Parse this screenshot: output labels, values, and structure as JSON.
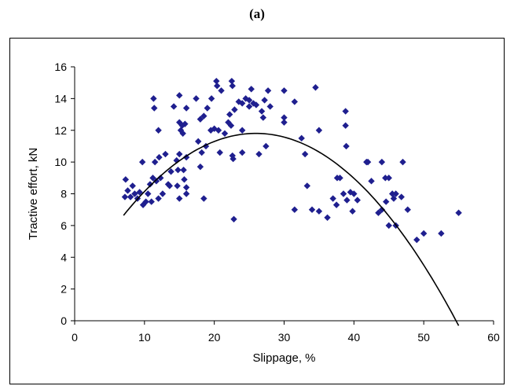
{
  "panel": {
    "label_open": "(",
    "label_letter": "a",
    "label_close": ")"
  },
  "chart_data": {
    "type": "scatter",
    "xlabel": "Slippage, %",
    "ylabel": "Tractive effort, kN",
    "xlim": [
      0,
      60
    ],
    "ylim": [
      0,
      16
    ],
    "xticks": [
      0,
      10,
      20,
      30,
      40,
      50,
      60
    ],
    "yticks": [
      0,
      2,
      4,
      6,
      8,
      10,
      12,
      14,
      16
    ],
    "grid": false,
    "legend": "none",
    "colors": {
      "points": "#1F1F8F",
      "trend": "#000000"
    },
    "series": [
      {
        "values": [
          [
            7.2,
            7.8
          ],
          [
            7.3,
            8.9
          ],
          [
            7.6,
            8.2
          ],
          [
            8.0,
            7.8
          ],
          [
            8.3,
            8.5
          ],
          [
            8.6,
            8.0
          ],
          [
            9.0,
            7.7
          ],
          [
            9.3,
            8.1
          ],
          [
            9.7,
            10.0
          ],
          [
            9.8,
            7.3
          ],
          [
            10.2,
            7.5
          ],
          [
            10.5,
            8.0
          ],
          [
            10.8,
            8.6
          ],
          [
            11.0,
            7.5
          ],
          [
            11.2,
            9.0
          ],
          [
            11.3,
            14.0
          ],
          [
            11.4,
            13.4
          ],
          [
            11.5,
            10.0
          ],
          [
            11.7,
            8.8
          ],
          [
            12.0,
            7.7
          ],
          [
            12.0,
            12.0
          ],
          [
            12.1,
            10.3
          ],
          [
            12.3,
            9.0
          ],
          [
            12.6,
            8.0
          ],
          [
            13.0,
            10.5
          ],
          [
            13.4,
            8.6
          ],
          [
            13.6,
            8.5
          ],
          [
            13.8,
            9.4
          ],
          [
            14.2,
            13.5
          ],
          [
            14.6,
            10.1
          ],
          [
            14.7,
            8.5
          ],
          [
            14.8,
            9.5
          ],
          [
            15.0,
            14.2
          ],
          [
            15.0,
            12.5
          ],
          [
            15.0,
            10.5
          ],
          [
            15.0,
            7.7
          ],
          [
            15.2,
            12.0
          ],
          [
            15.4,
            12.3
          ],
          [
            15.5,
            11.8
          ],
          [
            15.6,
            9.5
          ],
          [
            15.7,
            8.9
          ],
          [
            15.8,
            12.4
          ],
          [
            16.0,
            13.4
          ],
          [
            16.0,
            10.3
          ],
          [
            16.0,
            8.4
          ],
          [
            16.0,
            8.0
          ],
          [
            17.4,
            14.0
          ],
          [
            17.7,
            11.3
          ],
          [
            18.0,
            12.7
          ],
          [
            18.0,
            9.7
          ],
          [
            18.2,
            10.6
          ],
          [
            18.5,
            12.9
          ],
          [
            18.5,
            7.7
          ],
          [
            18.8,
            11.0
          ],
          [
            19.0,
            13.4
          ],
          [
            19.5,
            12.0
          ],
          [
            19.6,
            14.0
          ],
          [
            20.0,
            12.1
          ],
          [
            20.3,
            15.1
          ],
          [
            20.4,
            14.8
          ],
          [
            20.6,
            12.0
          ],
          [
            20.8,
            10.6
          ],
          [
            21.0,
            14.5
          ],
          [
            21.5,
            11.8
          ],
          [
            22.0,
            12.5
          ],
          [
            22.2,
            13.0
          ],
          [
            22.4,
            12.3
          ],
          [
            22.5,
            15.1
          ],
          [
            22.6,
            14.8
          ],
          [
            22.6,
            10.4
          ],
          [
            22.7,
            10.2
          ],
          [
            22.8,
            6.4
          ],
          [
            22.9,
            13.3
          ],
          [
            23.5,
            13.8
          ],
          [
            24.0,
            10.6
          ],
          [
            24.0,
            13.7
          ],
          [
            24.0,
            12.0
          ],
          [
            24.5,
            14.0
          ],
          [
            25.0,
            13.9
          ],
          [
            25.0,
            13.5
          ],
          [
            25.3,
            14.6
          ],
          [
            25.6,
            13.7
          ],
          [
            26.0,
            13.6
          ],
          [
            26.4,
            10.5
          ],
          [
            26.8,
            13.2
          ],
          [
            27.0,
            12.8
          ],
          [
            27.2,
            13.9
          ],
          [
            27.4,
            11.0
          ],
          [
            27.7,
            14.5
          ],
          [
            28.0,
            13.5
          ],
          [
            30.0,
            14.5
          ],
          [
            30.0,
            12.8
          ],
          [
            30.0,
            12.5
          ],
          [
            31.5,
            13.8
          ],
          [
            31.5,
            7.0
          ],
          [
            32.5,
            11.5
          ],
          [
            33.0,
            10.5
          ],
          [
            33.3,
            8.5
          ],
          [
            34.0,
            7.0
          ],
          [
            34.5,
            14.7
          ],
          [
            35.0,
            12.0
          ],
          [
            35.0,
            6.9
          ],
          [
            36.2,
            6.5
          ],
          [
            37.0,
            7.7
          ],
          [
            37.5,
            7.3
          ],
          [
            37.6,
            9.0
          ],
          [
            38.0,
            9.0
          ],
          [
            38.5,
            8.0
          ],
          [
            38.8,
            13.2
          ],
          [
            38.8,
            12.3
          ],
          [
            38.9,
            11.0
          ],
          [
            39.0,
            7.6
          ],
          [
            39.5,
            8.1
          ],
          [
            39.8,
            6.9
          ],
          [
            40.0,
            8.0
          ],
          [
            40.5,
            7.6
          ],
          [
            41.8,
            10.0
          ],
          [
            42.0,
            10.0
          ],
          [
            42.5,
            8.8
          ],
          [
            43.5,
            6.8
          ],
          [
            44.0,
            7.0
          ],
          [
            44.0,
            10.0
          ],
          [
            44.5,
            9.0
          ],
          [
            44.6,
            7.5
          ],
          [
            45.0,
            9.0
          ],
          [
            45.0,
            6.0
          ],
          [
            45.5,
            8.0
          ],
          [
            45.7,
            7.7
          ],
          [
            46.0,
            8.0
          ],
          [
            46.0,
            6.0
          ],
          [
            46.8,
            7.8
          ],
          [
            47.0,
            10.0
          ],
          [
            47.7,
            7.0
          ],
          [
            49.0,
            5.1
          ],
          [
            50.0,
            5.5
          ],
          [
            52.5,
            5.5
          ],
          [
            55.0,
            6.8
          ]
        ]
      }
    ],
    "trendline": {
      "type": "polynomial",
      "x_range": [
        7,
        55
      ],
      "coefficients": [
        2.12,
        0.7462,
        -0.01437
      ]
    }
  }
}
